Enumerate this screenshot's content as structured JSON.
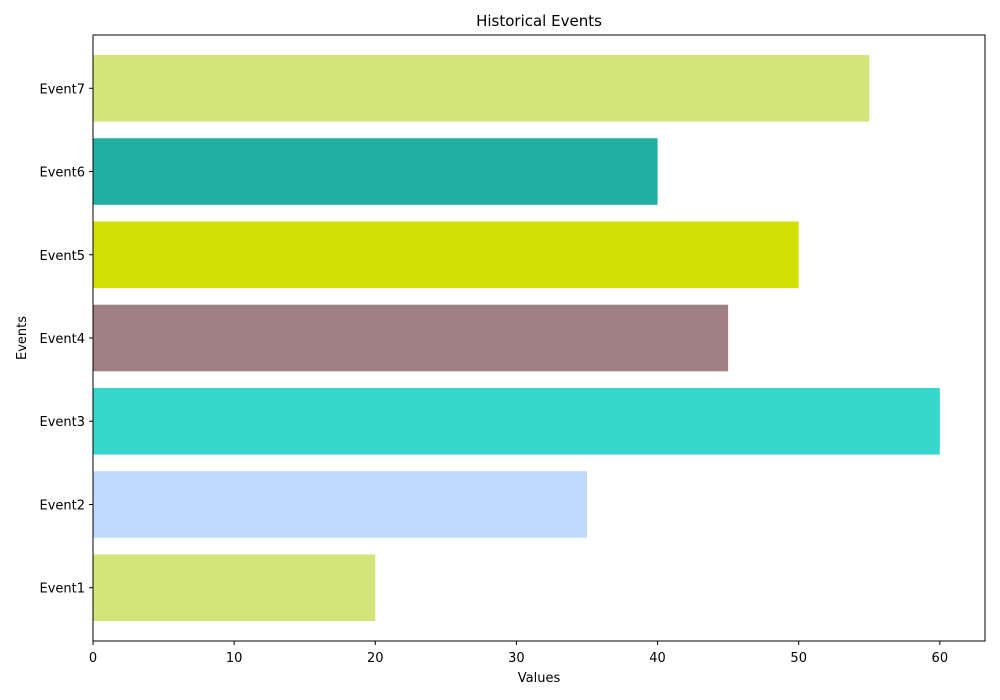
{
  "chart_data": {
    "type": "bar",
    "orientation": "horizontal",
    "title": "Historical Events",
    "xlabel": "Values",
    "ylabel": "Events",
    "categories": [
      "Event1",
      "Event2",
      "Event3",
      "Event4",
      "Event5",
      "Event6",
      "Event7"
    ],
    "values": [
      20,
      35,
      60,
      45,
      50,
      40,
      55
    ],
    "colors": [
      "#d3e47a",
      "#bfdafe",
      "#35d8cb",
      "#a18085",
      "#d1e006",
      "#22afa3",
      "#d3e47a"
    ],
    "xlim": [
      0,
      63.2
    ],
    "xticks": [
      0,
      10,
      20,
      30,
      40,
      50,
      60
    ],
    "grid": false,
    "legend": "none"
  }
}
